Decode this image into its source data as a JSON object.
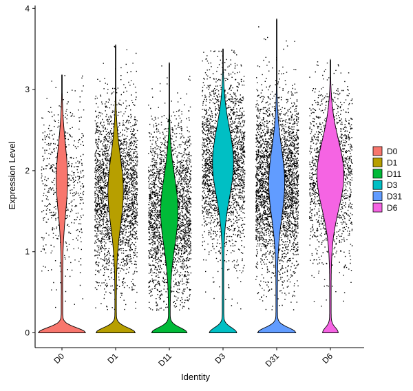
{
  "chart_data": {
    "type": "violin",
    "xlabel": "Identity",
    "ylabel": "Expression Level",
    "ylim": [
      -0.2,
      4.05
    ],
    "yticks": [
      0,
      1,
      2,
      3,
      4
    ],
    "grid": false,
    "legend_position": "right",
    "points_overlay": true,
    "categories": [
      "D0",
      "D1",
      "D11",
      "D3",
      "D31",
      "D6"
    ],
    "series": [
      {
        "name": "D0",
        "color": "#F8766D",
        "max": 3.18,
        "zero_fraction": 0.97,
        "peak_expression": 1.9,
        "point_density": 0.22
      },
      {
        "name": "D1",
        "color": "#B79F00",
        "max": 3.55,
        "zero_fraction": 0.8,
        "peak_expression": 1.75,
        "point_density": 1.0
      },
      {
        "name": "D11",
        "color": "#00BA38",
        "max": 3.33,
        "zero_fraction": 0.72,
        "peak_expression": 1.5,
        "point_density": 0.95
      },
      {
        "name": "D3",
        "color": "#00BFC4",
        "max": 3.5,
        "zero_fraction": 0.55,
        "peak_expression": 2.1,
        "point_density": 0.92
      },
      {
        "name": "D31",
        "color": "#619CFF",
        "max": 3.87,
        "zero_fraction": 0.78,
        "peak_expression": 1.85,
        "point_density": 1.25
      },
      {
        "name": "D6",
        "color": "#F564E3",
        "max": 3.37,
        "zero_fraction": 0.3,
        "peak_expression": 1.95,
        "point_density": 0.55
      }
    ]
  }
}
